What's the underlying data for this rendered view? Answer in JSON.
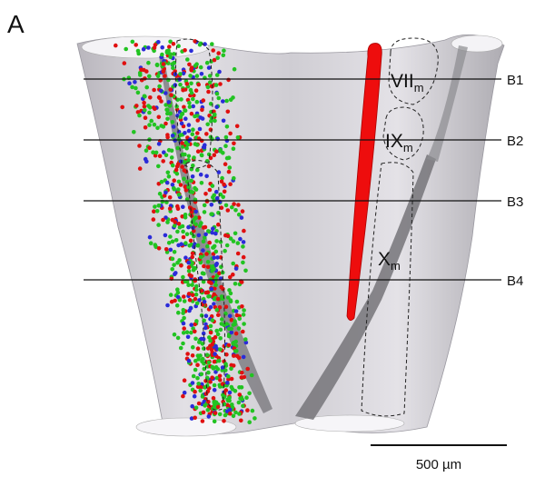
{
  "panel_label": "A",
  "regions": [
    {
      "label": "VII",
      "subscript": "m"
    },
    {
      "label": "IX",
      "subscript": "m"
    },
    {
      "label": "X",
      "subscript": "m"
    }
  ],
  "section_lines": [
    "B1",
    "B2",
    "B3",
    "B4"
  ],
  "scale_bar": "500 µm"
}
